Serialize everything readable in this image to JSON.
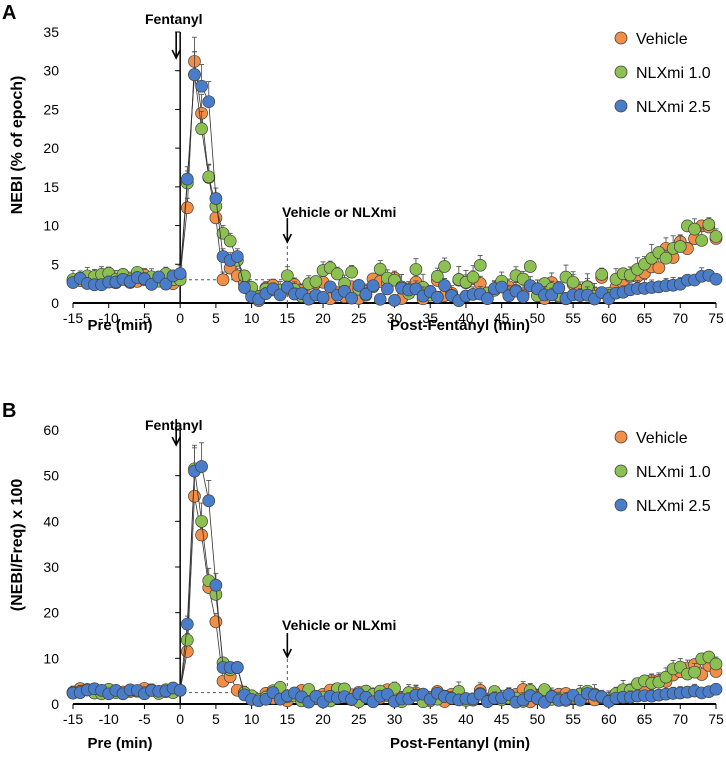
{
  "colors": {
    "vehicle": "#f28e45",
    "nlxmi_1_0": "#8cc152",
    "nlxmi_2_5": "#4a7dc9",
    "marker_edge": "#404040",
    "axis": "#000000",
    "reference": "#555555"
  },
  "chart_data": [
    {
      "panel": "A",
      "type": "scatter",
      "ylabel": "NEBI (% of epoch)",
      "xlabel_pre": "Pre (min)",
      "xlabel_post": "Post-Fentanyl (min)",
      "xlim": [
        -15,
        75
      ],
      "ylim": [
        0,
        35
      ],
      "xticks": [
        -15,
        -10,
        -5,
        0,
        5,
        10,
        15,
        20,
        25,
        30,
        35,
        40,
        45,
        50,
        55,
        60,
        65,
        70,
        75
      ],
      "yticks": [
        0,
        5,
        10,
        15,
        20,
        25,
        30,
        35
      ],
      "baseline_reference": 3,
      "legend": [
        "Vehicle",
        "NLXmi 1.0",
        "NLXmi 2.5"
      ],
      "annotations": [
        {
          "text": "Fentanyl",
          "x": 0
        },
        {
          "text": "Vehicle or NLXmi",
          "x": 15
        }
      ],
      "peak_series": [
        {
          "name": "Vehicle",
          "x": [
            -1,
            0,
            1,
            2,
            3,
            4,
            5,
            6,
            7,
            8,
            9,
            10,
            11
          ],
          "y": [
            2.5,
            3.5,
            12.3,
            31.2,
            24.5,
            16.2,
            11,
            3,
            4.5,
            3.5,
            2.5,
            1.2,
            0.3
          ]
        },
        {
          "name": "NLXmi 1.0",
          "x": [
            -1,
            0,
            1,
            2,
            3,
            4,
            5,
            6,
            7,
            8,
            9,
            10,
            11
          ],
          "y": [
            3,
            3,
            15.5,
            29.5,
            22.5,
            16.3,
            12.5,
            9,
            8,
            5.5,
            3.5,
            2,
            0.8
          ]
        },
        {
          "name": "NLXmi 2.5",
          "x": [
            -1,
            0,
            1,
            2,
            3,
            4,
            5,
            6,
            7,
            8,
            9,
            10,
            11
          ],
          "y": [
            3.5,
            3.8,
            16,
            29.5,
            28,
            26,
            13.5,
            6,
            5.5,
            6,
            2,
            0.8,
            0.5
          ]
        }
      ],
      "series": [
        {
          "name": "Vehicle",
          "base": 3.2,
          "post": 1.6,
          "late": 10.2,
          "errs": 0.5,
          "seed": 11
        },
        {
          "name": "NLXmi 1.0",
          "base": 3.4,
          "post": 2.4,
          "late": 11,
          "errs": 0.6,
          "seed": 23
        },
        {
          "name": "NLXmi 2.5",
          "base": 3,
          "post": 1.1,
          "late": 3.8,
          "errs": 0.4,
          "seed": 37
        }
      ]
    },
    {
      "panel": "B",
      "type": "scatter",
      "ylabel": "(NEBI/Freq) x 100",
      "xlabel_pre": "Pre (min)",
      "xlabel_post": "Post-Fentanyl (min)",
      "xlim": [
        -15,
        75
      ],
      "ylim": [
        0,
        60
      ],
      "xticks": [
        -15,
        -10,
        -5,
        0,
        5,
        10,
        15,
        20,
        25,
        30,
        35,
        40,
        45,
        50,
        55,
        60,
        65,
        70,
        75
      ],
      "yticks": [
        0,
        10,
        20,
        30,
        40,
        50,
        60
      ],
      "baseline_reference": 2.5,
      "legend": [
        "Vehicle",
        "NLXmi 1.0",
        "NLXmi 2.5"
      ],
      "annotations": [
        {
          "text": "Fentanyl",
          "x": 0
        },
        {
          "text": "Vehicle or NLXmi",
          "x": 15
        }
      ],
      "peak_series": [
        {
          "name": "Vehicle",
          "x": [
            -1,
            0,
            1,
            2,
            3,
            4,
            5,
            6,
            7,
            8,
            9,
            10,
            11
          ],
          "y": [
            3,
            3,
            11.5,
            45.5,
            37,
            25.5,
            18,
            5,
            6,
            3,
            2.5,
            1.5,
            0.8
          ]
        },
        {
          "name": "NLXmi 1.0",
          "x": [
            -1,
            0,
            1,
            2,
            3,
            4,
            5,
            6,
            7,
            8,
            9,
            10,
            11
          ],
          "y": [
            2.5,
            3,
            14,
            51.5,
            40,
            27,
            24,
            9,
            7.5,
            8,
            2.5,
            1.8,
            1
          ]
        },
        {
          "name": "NLXmi 2.5",
          "x": [
            -1,
            0,
            1,
            2,
            3,
            4,
            5,
            6,
            7,
            8,
            9,
            10,
            11
          ],
          "y": [
            3.5,
            3,
            17.5,
            51,
            52,
            44.5,
            26,
            8,
            8,
            8,
            2,
            1,
            0.7
          ]
        }
      ],
      "series": [
        {
          "name": "Vehicle",
          "base": 2.8,
          "post": 1.6,
          "late": 9,
          "errs": 0.6,
          "seed": 51
        },
        {
          "name": "NLXmi 1.0",
          "base": 2.9,
          "post": 1.8,
          "late": 10.2,
          "errs": 0.7,
          "seed": 67
        },
        {
          "name": "NLXmi 2.5",
          "base": 2.7,
          "post": 1.2,
          "late": 3,
          "errs": 0.5,
          "seed": 89
        }
      ]
    }
  ]
}
